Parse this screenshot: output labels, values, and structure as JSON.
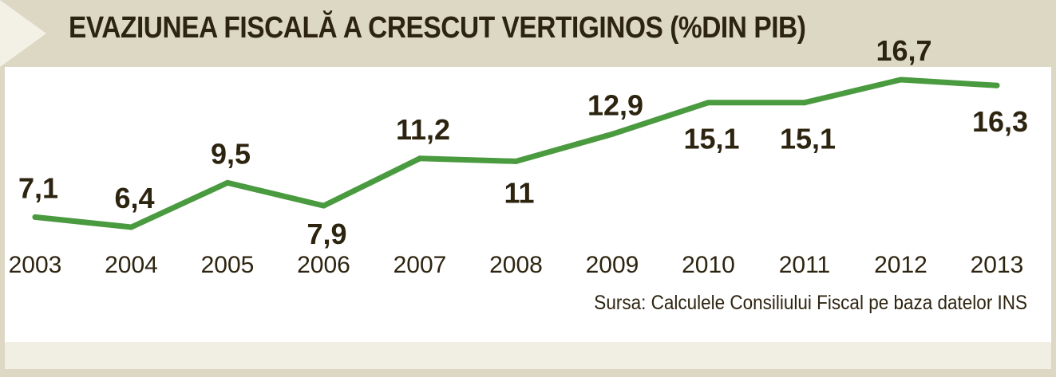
{
  "title": "EVAZIUNEA FISCALĂ A CRESCUT VERTIGINOS (%DIN PIB)",
  "source": "Sursa: Calculele Consiliului Fiscal pe baza datelor INS",
  "colors": {
    "line": "#4a9a3f",
    "text": "#2d2410",
    "band": "#dcd8c4"
  },
  "chart_data": {
    "type": "line",
    "title": "EVAZIUNEA FISCALĂ A CRESCUT VERTIGINOS (%DIN PIB)",
    "xlabel": "",
    "ylabel": "",
    "categories": [
      "2003",
      "2004",
      "2005",
      "2006",
      "2007",
      "2008",
      "2009",
      "2010",
      "2011",
      "2012",
      "2013"
    ],
    "values": [
      7.1,
      6.4,
      9.5,
      7.9,
      11.2,
      11,
      12.9,
      15.1,
      15.1,
      16.7,
      16.3
    ],
    "data_labels": [
      "7,1",
      "6,4",
      "9,5",
      "7,9",
      "11,2",
      "11",
      "12,9",
      "15,1",
      "15,1",
      "16,7",
      "16,3"
    ],
    "grid": false,
    "legend": "none"
  }
}
